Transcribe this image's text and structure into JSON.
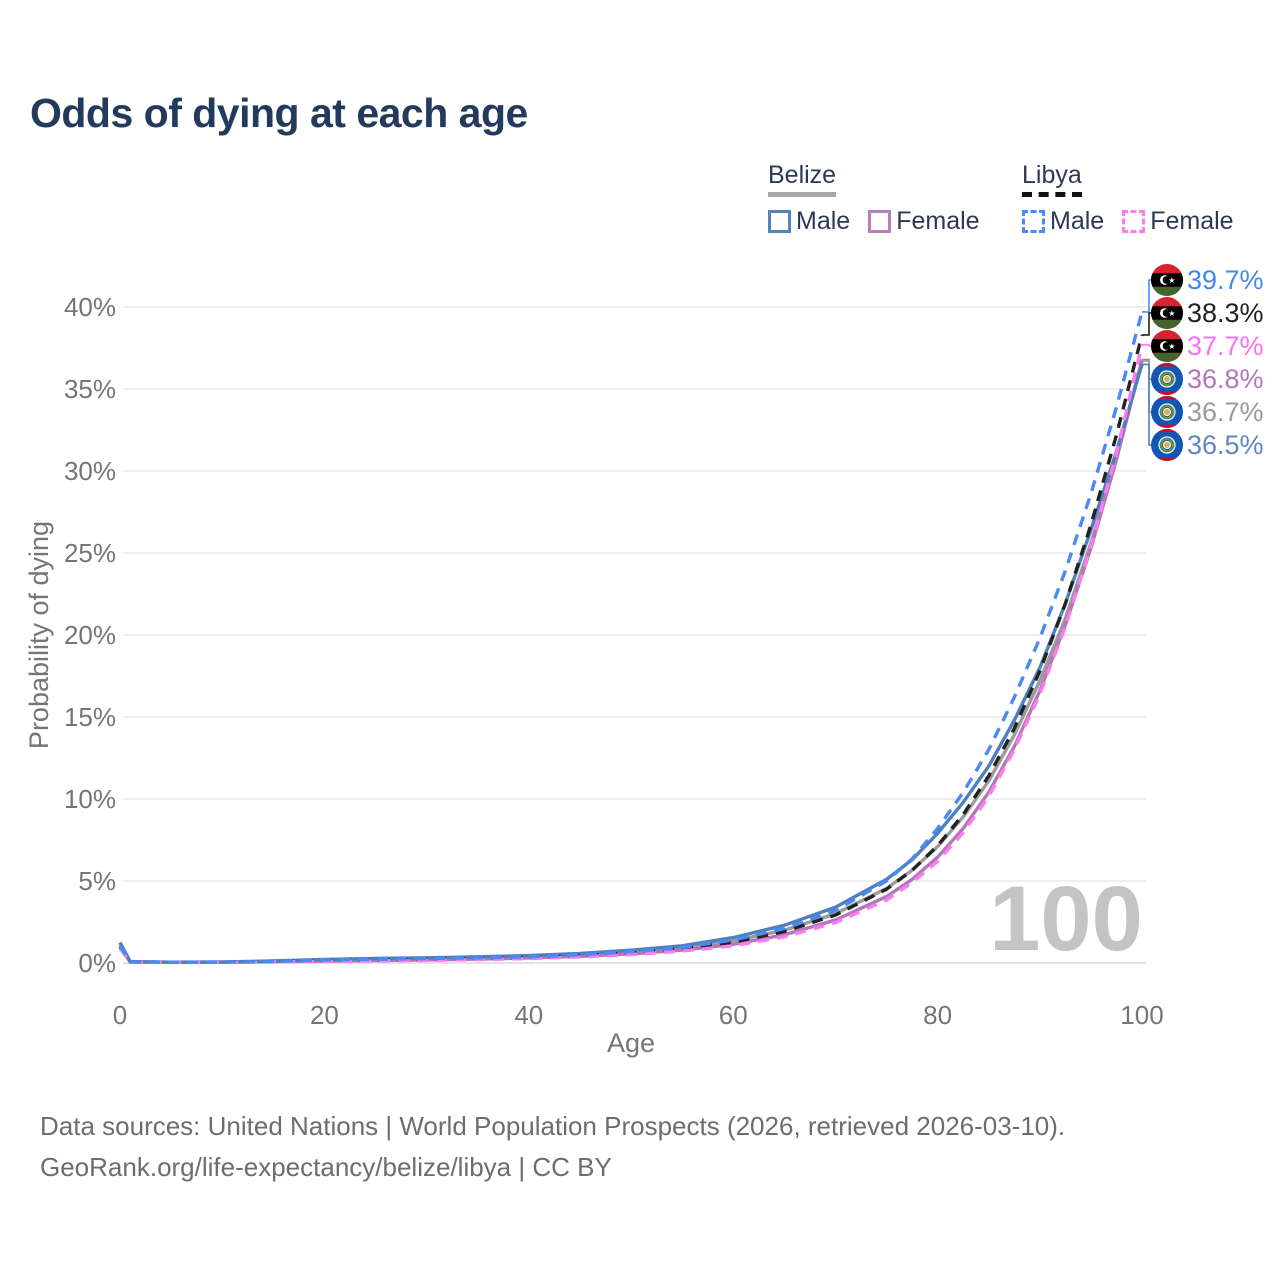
{
  "title": "Odds of dying at each age",
  "legend": {
    "groups": [
      {
        "id": "belize",
        "label": "Belize",
        "underline": "solid",
        "underline_color": "#a8a8a8",
        "items": [
          {
            "label": "Male",
            "color": "#5583bd",
            "dashed": false
          },
          {
            "label": "Female",
            "color": "#b77fb7",
            "dashed": false
          }
        ]
      },
      {
        "id": "libya",
        "label": "Libya",
        "underline": "dashed",
        "underline_color": "#111111",
        "items": [
          {
            "label": "Male",
            "color": "#4a8af4",
            "dashed": true
          },
          {
            "label": "Female",
            "color": "#fb7cec",
            "dashed": true
          }
        ]
      }
    ]
  },
  "chart_data": {
    "type": "line",
    "title": "Odds of dying at each age",
    "xlabel": "Age",
    "ylabel": "Probability of dying",
    "xlim": [
      0,
      100
    ],
    "ylim": [
      0,
      40
    ],
    "grid": "horizontal",
    "legend_position": "top-right",
    "age_counter": "100",
    "x_ticks_values": [
      0,
      20,
      40,
      60,
      80,
      100
    ],
    "x_ticks_labels": [
      "0",
      "20",
      "40",
      "60",
      "80",
      "100"
    ],
    "y_ticks_values": [
      0,
      5,
      10,
      15,
      20,
      25,
      30,
      35,
      40
    ],
    "y_ticks_labels": [
      "0%",
      "5%",
      "10%",
      "15%",
      "20%",
      "25%",
      "30%",
      "35%",
      "40%"
    ],
    "series": [
      {
        "id": "belize-both",
        "name": "Belize Both sexes",
        "color": "#9b9b9b",
        "dash": null,
        "end_value_pct": 36.7,
        "points": [
          [
            0,
            1.15
          ],
          [
            1,
            0.075
          ],
          [
            5,
            0.048
          ],
          [
            10,
            0.055
          ],
          [
            15,
            0.1
          ],
          [
            20,
            0.17
          ],
          [
            25,
            0.21
          ],
          [
            30,
            0.25
          ],
          [
            35,
            0.31
          ],
          [
            40,
            0.38
          ],
          [
            45,
            0.5
          ],
          [
            50,
            0.67
          ],
          [
            55,
            0.92
          ],
          [
            60,
            1.35
          ],
          [
            65,
            2.0
          ],
          [
            70,
            3.0
          ],
          [
            75,
            4.55
          ],
          [
            77.5,
            5.65
          ],
          [
            80,
            7.1
          ],
          [
            82.5,
            8.9
          ],
          [
            85,
            11.1
          ],
          [
            87.5,
            13.9
          ],
          [
            90,
            17.2
          ],
          [
            92.5,
            21.0
          ],
          [
            95,
            25.6
          ],
          [
            97.5,
            30.8
          ],
          [
            100,
            36.7
          ]
        ]
      },
      {
        "id": "belize-female",
        "name": "Belize Female",
        "color": "#b475bb",
        "dash": null,
        "end_value_pct": 36.8,
        "points": [
          [
            0,
            1.0
          ],
          [
            1,
            0.06
          ],
          [
            5,
            0.04
          ],
          [
            10,
            0.045
          ],
          [
            15,
            0.08
          ],
          [
            20,
            0.12
          ],
          [
            25,
            0.15
          ],
          [
            30,
            0.19
          ],
          [
            35,
            0.24
          ],
          [
            40,
            0.31
          ],
          [
            45,
            0.41
          ],
          [
            50,
            0.56
          ],
          [
            55,
            0.79
          ],
          [
            60,
            1.14
          ],
          [
            65,
            1.72
          ],
          [
            70,
            2.62
          ],
          [
            75,
            4.05
          ],
          [
            77.5,
            5.1
          ],
          [
            80,
            6.45
          ],
          [
            82.5,
            8.2
          ],
          [
            85,
            10.4
          ],
          [
            87.5,
            13.2
          ],
          [
            90,
            16.6
          ],
          [
            92.5,
            20.6
          ],
          [
            95,
            25.3
          ],
          [
            97.5,
            30.7
          ],
          [
            100,
            36.8
          ]
        ]
      },
      {
        "id": "belize-male",
        "name": "Belize Male",
        "color": "#4e7fbe",
        "dash": null,
        "end_value_pct": 36.5,
        "points": [
          [
            0,
            1.25
          ],
          [
            1,
            0.08
          ],
          [
            5,
            0.05
          ],
          [
            10,
            0.06
          ],
          [
            15,
            0.12
          ],
          [
            20,
            0.22
          ],
          [
            25,
            0.28
          ],
          [
            30,
            0.32
          ],
          [
            35,
            0.38
          ],
          [
            40,
            0.45
          ],
          [
            45,
            0.58
          ],
          [
            50,
            0.78
          ],
          [
            55,
            1.05
          ],
          [
            60,
            1.55
          ],
          [
            65,
            2.3
          ],
          [
            70,
            3.4
          ],
          [
            75,
            5.1
          ],
          [
            77.5,
            6.3
          ],
          [
            80,
            7.9
          ],
          [
            82.5,
            9.8
          ],
          [
            85,
            12.0
          ],
          [
            87.5,
            14.8
          ],
          [
            90,
            18.0
          ],
          [
            92.5,
            21.9
          ],
          [
            95,
            26.4
          ],
          [
            97.5,
            31.2
          ],
          [
            100,
            36.5
          ]
        ]
      },
      {
        "id": "libya-both",
        "name": "Libya Both sexes",
        "color": "#222222",
        "dash": "11 8",
        "end_value_pct": 38.3,
        "points": [
          [
            0,
            0.95
          ],
          [
            1,
            0.065
          ],
          [
            5,
            0.04
          ],
          [
            10,
            0.05
          ],
          [
            15,
            0.09
          ],
          [
            20,
            0.14
          ],
          [
            25,
            0.18
          ],
          [
            30,
            0.22
          ],
          [
            35,
            0.26
          ],
          [
            40,
            0.33
          ],
          [
            45,
            0.44
          ],
          [
            50,
            0.61
          ],
          [
            55,
            0.86
          ],
          [
            60,
            1.27
          ],
          [
            65,
            1.92
          ],
          [
            70,
            2.92
          ],
          [
            75,
            4.5
          ],
          [
            77.5,
            5.65
          ],
          [
            80,
            7.15
          ],
          [
            82.5,
            9.05
          ],
          [
            85,
            11.4
          ],
          [
            87.5,
            14.3
          ],
          [
            90,
            17.8
          ],
          [
            92.5,
            21.9
          ],
          [
            95,
            26.7
          ],
          [
            97.5,
            32.2
          ],
          [
            100,
            38.3
          ]
        ]
      },
      {
        "id": "libya-female",
        "name": "Libya Female",
        "color": "#fb7cec",
        "dash": "11 8",
        "end_value_pct": 37.7,
        "points": [
          [
            0,
            0.9
          ],
          [
            1,
            0.055
          ],
          [
            5,
            0.035
          ],
          [
            10,
            0.04
          ],
          [
            15,
            0.07
          ],
          [
            20,
            0.1
          ],
          [
            25,
            0.13
          ],
          [
            30,
            0.16
          ],
          [
            35,
            0.21
          ],
          [
            40,
            0.27
          ],
          [
            45,
            0.37
          ],
          [
            50,
            0.51
          ],
          [
            55,
            0.73
          ],
          [
            60,
            1.05
          ],
          [
            65,
            1.6
          ],
          [
            70,
            2.46
          ],
          [
            75,
            3.85
          ],
          [
            77.5,
            4.9
          ],
          [
            80,
            6.2
          ],
          [
            82.5,
            7.95
          ],
          [
            85,
            10.15
          ],
          [
            87.5,
            13.0
          ],
          [
            90,
            16.4
          ],
          [
            92.5,
            20.5
          ],
          [
            95,
            25.4
          ],
          [
            97.5,
            31.1
          ],
          [
            100,
            37.7
          ]
        ]
      },
      {
        "id": "libya-male",
        "name": "Libya Male",
        "color": "#4a8af4",
        "dash": "11 8",
        "end_value_pct": 39.7,
        "points": [
          [
            0,
            1.05
          ],
          [
            1,
            0.07
          ],
          [
            5,
            0.045
          ],
          [
            10,
            0.05
          ],
          [
            15,
            0.1
          ],
          [
            20,
            0.18
          ],
          [
            25,
            0.23
          ],
          [
            30,
            0.27
          ],
          [
            35,
            0.32
          ],
          [
            40,
            0.38
          ],
          [
            45,
            0.5
          ],
          [
            50,
            0.68
          ],
          [
            55,
            0.95
          ],
          [
            60,
            1.4
          ],
          [
            65,
            2.1
          ],
          [
            70,
            3.2
          ],
          [
            75,
            5.0
          ],
          [
            77.5,
            6.35
          ],
          [
            80,
            8.2
          ],
          [
            82.5,
            10.4
          ],
          [
            85,
            13.0
          ],
          [
            87.5,
            16.2
          ],
          [
            90,
            19.8
          ],
          [
            92.5,
            23.9
          ],
          [
            95,
            28.6
          ],
          [
            97.5,
            33.9
          ],
          [
            100,
            39.7
          ]
        ]
      }
    ],
    "end_labels": [
      {
        "series": "libya-male",
        "flag": "libya-flag-icon",
        "text": "39.7%",
        "color": "#4286f2"
      },
      {
        "series": "libya-both",
        "flag": "libya-flag-icon",
        "text": "38.3%",
        "color": "#222222"
      },
      {
        "series": "libya-female",
        "flag": "libya-flag-icon",
        "text": "37.7%",
        "color": "#fb6ff0"
      },
      {
        "series": "belize-female",
        "flag": "belize-flag-icon",
        "text": "36.8%",
        "color": "#b475bb"
      },
      {
        "series": "belize-both",
        "flag": "belize-flag-icon",
        "text": "36.7%",
        "color": "#9b9b9b"
      },
      {
        "series": "belize-male",
        "flag": "belize-flag-icon",
        "text": "36.5%",
        "color": "#5b87c5"
      }
    ]
  },
  "footer": {
    "line1": "Data sources: United Nations | World Population Prospects (2026, retrieved 2026-03-10).",
    "line2": "GeoRank.org/life-expectancy/belize/libya | CC BY"
  }
}
